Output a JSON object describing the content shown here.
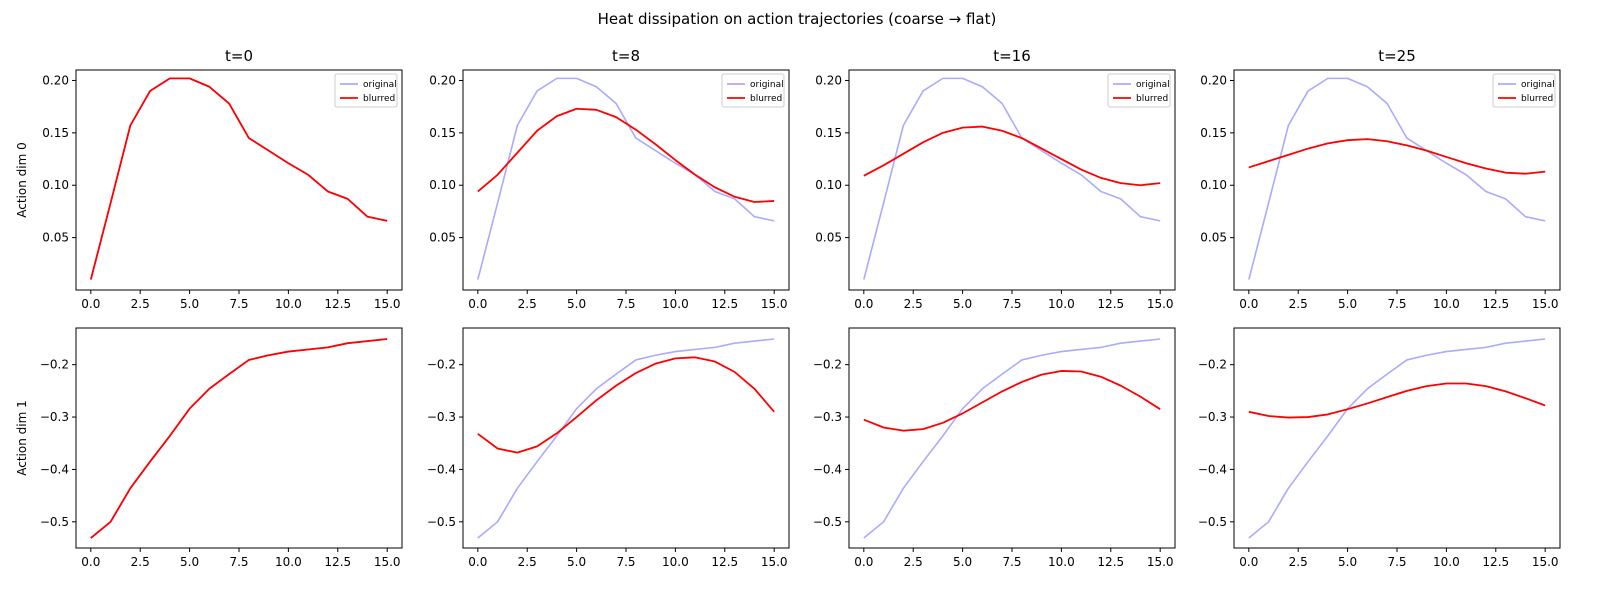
{
  "figure": {
    "suptitle": "Heat dissipation on action trajectories (coarse → flat)"
  },
  "colors": {
    "original": "#aaaaff",
    "blurred": "#ff0000",
    "axes": "#000000",
    "background": "#ffffff"
  },
  "chart_data": [
    {
      "type": "line",
      "title": "t=0",
      "xlabel": "",
      "ylabel": "Action dim 0",
      "xlim": [
        -0.75,
        15.75
      ],
      "ylim": [
        0.0,
        0.21
      ],
      "xticks": [
        0,
        2.5,
        5,
        7.5,
        10,
        12.5,
        15
      ],
      "xtick_labels": [
        "0.0",
        "2.5",
        "5.0",
        "7.5",
        "10.0",
        "12.5",
        "15.0"
      ],
      "yticks": [
        0.05,
        0.1,
        0.15,
        0.2
      ],
      "ytick_labels": [
        "0.05",
        "0.10",
        "0.15",
        "0.20"
      ],
      "legend": "top-right",
      "grid": false,
      "x": [
        0,
        1,
        2,
        3,
        4,
        5,
        6,
        7,
        8,
        9,
        10,
        11,
        12,
        13,
        14,
        15
      ],
      "series": [
        {
          "name": "original",
          "values": [
            0.01,
            0.083,
            0.157,
            0.19,
            0.202,
            0.202,
            0.194,
            0.178,
            0.145,
            0.133,
            0.121,
            0.11,
            0.094,
            0.087,
            0.07,
            0.066
          ]
        },
        {
          "name": "blurred",
          "values": [
            0.01,
            0.083,
            0.157,
            0.19,
            0.202,
            0.202,
            0.194,
            0.178,
            0.145,
            0.133,
            0.121,
            0.11,
            0.094,
            0.087,
            0.07,
            0.066
          ]
        }
      ]
    },
    {
      "type": "line",
      "title": "t=8",
      "xlabel": "",
      "ylabel": "",
      "xlim": [
        -0.75,
        15.75
      ],
      "ylim": [
        0.0,
        0.21
      ],
      "xticks": [
        0,
        2.5,
        5,
        7.5,
        10,
        12.5,
        15
      ],
      "xtick_labels": [
        "0.0",
        "2.5",
        "5.0",
        "7.5",
        "10.0",
        "12.5",
        "15.0"
      ],
      "yticks": [
        0.05,
        0.1,
        0.15,
        0.2
      ],
      "ytick_labels": [
        "0.05",
        "0.10",
        "0.15",
        "0.20"
      ],
      "legend": "top-right",
      "grid": false,
      "x": [
        0,
        1,
        2,
        3,
        4,
        5,
        6,
        7,
        8,
        9,
        10,
        11,
        12,
        13,
        14,
        15
      ],
      "series": [
        {
          "name": "original",
          "values": [
            0.01,
            0.083,
            0.157,
            0.19,
            0.202,
            0.202,
            0.194,
            0.178,
            0.145,
            0.133,
            0.121,
            0.11,
            0.094,
            0.087,
            0.07,
            0.066
          ]
        },
        {
          "name": "blurred",
          "values": [
            0.094,
            0.11,
            0.131,
            0.152,
            0.166,
            0.173,
            0.172,
            0.165,
            0.153,
            0.139,
            0.124,
            0.11,
            0.098,
            0.089,
            0.084,
            0.085
          ]
        }
      ]
    },
    {
      "type": "line",
      "title": "t=16",
      "xlabel": "",
      "ylabel": "",
      "xlim": [
        -0.75,
        15.75
      ],
      "ylim": [
        0.0,
        0.21
      ],
      "xticks": [
        0,
        2.5,
        5,
        7.5,
        10,
        12.5,
        15
      ],
      "xtick_labels": [
        "0.0",
        "2.5",
        "5.0",
        "7.5",
        "10.0",
        "12.5",
        "15.0"
      ],
      "yticks": [
        0.05,
        0.1,
        0.15,
        0.2
      ],
      "ytick_labels": [
        "0.05",
        "0.10",
        "0.15",
        "0.20"
      ],
      "legend": "top-right",
      "grid": false,
      "x": [
        0,
        1,
        2,
        3,
        4,
        5,
        6,
        7,
        8,
        9,
        10,
        11,
        12,
        13,
        14,
        15
      ],
      "series": [
        {
          "name": "original",
          "values": [
            0.01,
            0.083,
            0.157,
            0.19,
            0.202,
            0.202,
            0.194,
            0.178,
            0.145,
            0.133,
            0.121,
            0.11,
            0.094,
            0.087,
            0.07,
            0.066
          ]
        },
        {
          "name": "blurred",
          "values": [
            0.109,
            0.119,
            0.13,
            0.141,
            0.15,
            0.155,
            0.156,
            0.152,
            0.145,
            0.135,
            0.125,
            0.115,
            0.107,
            0.102,
            0.1,
            0.102
          ]
        }
      ]
    },
    {
      "type": "line",
      "title": "t=25",
      "xlabel": "",
      "ylabel": "",
      "xlim": [
        -0.75,
        15.75
      ],
      "ylim": [
        0.0,
        0.21
      ],
      "xticks": [
        0,
        2.5,
        5,
        7.5,
        10,
        12.5,
        15
      ],
      "xtick_labels": [
        "0.0",
        "2.5",
        "5.0",
        "7.5",
        "10.0",
        "12.5",
        "15.0"
      ],
      "yticks": [
        0.05,
        0.1,
        0.15,
        0.2
      ],
      "ytick_labels": [
        "0.05",
        "0.10",
        "0.15",
        "0.20"
      ],
      "legend": "top-right",
      "grid": false,
      "x": [
        0,
        1,
        2,
        3,
        4,
        5,
        6,
        7,
        8,
        9,
        10,
        11,
        12,
        13,
        14,
        15
      ],
      "series": [
        {
          "name": "original",
          "values": [
            0.01,
            0.083,
            0.157,
            0.19,
            0.202,
            0.202,
            0.194,
            0.178,
            0.145,
            0.133,
            0.121,
            0.11,
            0.094,
            0.087,
            0.07,
            0.066
          ]
        },
        {
          "name": "blurred",
          "values": [
            0.117,
            0.123,
            0.129,
            0.135,
            0.14,
            0.143,
            0.144,
            0.142,
            0.138,
            0.133,
            0.127,
            0.121,
            0.116,
            0.112,
            0.111,
            0.113
          ]
        }
      ]
    },
    {
      "type": "line",
      "title": "",
      "xlabel": "",
      "ylabel": "Action dim 1",
      "xlim": [
        -0.75,
        15.75
      ],
      "ylim": [
        -0.55,
        -0.13
      ],
      "xticks": [
        0,
        2.5,
        5,
        7.5,
        10,
        12.5,
        15
      ],
      "xtick_labels": [
        "0.0",
        "2.5",
        "5.0",
        "7.5",
        "10.0",
        "12.5",
        "15.0"
      ],
      "yticks": [
        -0.5,
        -0.4,
        -0.3,
        -0.2
      ],
      "ytick_labels": [
        "−0.5",
        "−0.4",
        "−0.3",
        "−0.2"
      ],
      "legend": "none",
      "grid": false,
      "x": [
        0,
        1,
        2,
        3,
        4,
        5,
        6,
        7,
        8,
        9,
        10,
        11,
        12,
        13,
        14,
        15
      ],
      "series": [
        {
          "name": "original",
          "values": [
            -0.531,
            -0.5,
            -0.436,
            -0.385,
            -0.336,
            -0.284,
            -0.246,
            -0.218,
            -0.191,
            -0.182,
            -0.175,
            -0.171,
            -0.167,
            -0.159,
            -0.155,
            -0.151
          ]
        },
        {
          "name": "blurred",
          "values": [
            -0.531,
            -0.5,
            -0.436,
            -0.385,
            -0.336,
            -0.284,
            -0.246,
            -0.218,
            -0.191,
            -0.182,
            -0.175,
            -0.171,
            -0.167,
            -0.159,
            -0.155,
            -0.151
          ]
        }
      ]
    },
    {
      "type": "line",
      "title": "",
      "xlabel": "",
      "ylabel": "",
      "xlim": [
        -0.75,
        15.75
      ],
      "ylim": [
        -0.55,
        -0.13
      ],
      "xticks": [
        0,
        2.5,
        5,
        7.5,
        10,
        12.5,
        15
      ],
      "xtick_labels": [
        "0.0",
        "2.5",
        "5.0",
        "7.5",
        "10.0",
        "12.5",
        "15.0"
      ],
      "yticks": [
        -0.5,
        -0.4,
        -0.3,
        -0.2
      ],
      "ytick_labels": [
        "−0.5",
        "−0.4",
        "−0.3",
        "−0.2"
      ],
      "legend": "none",
      "grid": false,
      "x": [
        0,
        1,
        2,
        3,
        4,
        5,
        6,
        7,
        8,
        9,
        10,
        11,
        12,
        13,
        14,
        15
      ],
      "series": [
        {
          "name": "original",
          "values": [
            -0.531,
            -0.5,
            -0.436,
            -0.385,
            -0.336,
            -0.284,
            -0.246,
            -0.218,
            -0.191,
            -0.182,
            -0.175,
            -0.171,
            -0.167,
            -0.159,
            -0.155,
            -0.151
          ]
        },
        {
          "name": "blurred",
          "values": [
            -0.332,
            -0.36,
            -0.368,
            -0.356,
            -0.331,
            -0.3,
            -0.268,
            -0.24,
            -0.216,
            -0.198,
            -0.188,
            -0.186,
            -0.194,
            -0.214,
            -0.246,
            -0.29
          ]
        }
      ]
    },
    {
      "type": "line",
      "title": "",
      "xlabel": "",
      "ylabel": "",
      "xlim": [
        -0.75,
        15.75
      ],
      "ylim": [
        -0.55,
        -0.13
      ],
      "xticks": [
        0,
        2.5,
        5,
        7.5,
        10,
        12.5,
        15
      ],
      "xtick_labels": [
        "0.0",
        "2.5",
        "5.0",
        "7.5",
        "10.0",
        "12.5",
        "15.0"
      ],
      "yticks": [
        -0.5,
        -0.4,
        -0.3,
        -0.2
      ],
      "ytick_labels": [
        "−0.5",
        "−0.4",
        "−0.3",
        "−0.2"
      ],
      "legend": "none",
      "grid": false,
      "x": [
        0,
        1,
        2,
        3,
        4,
        5,
        6,
        7,
        8,
        9,
        10,
        11,
        12,
        13,
        14,
        15
      ],
      "series": [
        {
          "name": "original",
          "values": [
            -0.531,
            -0.5,
            -0.436,
            -0.385,
            -0.336,
            -0.284,
            -0.246,
            -0.218,
            -0.191,
            -0.182,
            -0.175,
            -0.171,
            -0.167,
            -0.159,
            -0.155,
            -0.151
          ]
        },
        {
          "name": "blurred",
          "values": [
            -0.305,
            -0.32,
            -0.326,
            -0.323,
            -0.311,
            -0.293,
            -0.272,
            -0.251,
            -0.233,
            -0.219,
            -0.212,
            -0.213,
            -0.223,
            -0.24,
            -0.261,
            -0.285
          ]
        }
      ]
    },
    {
      "type": "line",
      "title": "",
      "xlabel": "",
      "ylabel": "",
      "xlim": [
        -0.75,
        15.75
      ],
      "ylim": [
        -0.55,
        -0.13
      ],
      "xticks": [
        0,
        2.5,
        5,
        7.5,
        10,
        12.5,
        15
      ],
      "xtick_labels": [
        "0.0",
        "2.5",
        "5.0",
        "7.5",
        "10.0",
        "12.5",
        "15.0"
      ],
      "yticks": [
        -0.5,
        -0.4,
        -0.3,
        -0.2
      ],
      "ytick_labels": [
        "−0.5",
        "−0.4",
        "−0.3",
        "−0.2"
      ],
      "legend": "none",
      "grid": false,
      "x": [
        0,
        1,
        2,
        3,
        4,
        5,
        6,
        7,
        8,
        9,
        10,
        11,
        12,
        13,
        14,
        15
      ],
      "series": [
        {
          "name": "original",
          "values": [
            -0.531,
            -0.5,
            -0.436,
            -0.385,
            -0.336,
            -0.284,
            -0.246,
            -0.218,
            -0.191,
            -0.182,
            -0.175,
            -0.171,
            -0.167,
            -0.159,
            -0.155,
            -0.151
          ]
        },
        {
          "name": "blurred",
          "values": [
            -0.29,
            -0.298,
            -0.301,
            -0.3,
            -0.295,
            -0.285,
            -0.274,
            -0.262,
            -0.25,
            -0.241,
            -0.236,
            -0.236,
            -0.241,
            -0.251,
            -0.264,
            -0.278
          ]
        }
      ]
    }
  ]
}
